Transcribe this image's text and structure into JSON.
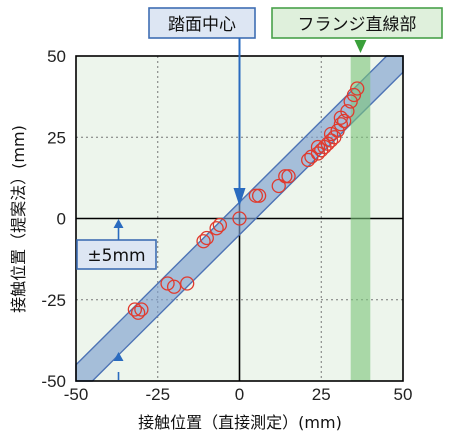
{
  "chart_data": {
    "type": "scatter",
    "xlabel": "接触位置（直接測定）(mm)",
    "ylabel": "接触位置（提案法）(mm)",
    "xlim": [
      -50,
      50
    ],
    "ylim": [
      -50,
      50
    ],
    "x_ticks": [
      "-50",
      "-25",
      "0",
      "25",
      "50"
    ],
    "y_ticks": [
      "50",
      "25",
      "0",
      "-25",
      "-50"
    ],
    "x_tick_values": [
      -50,
      -25,
      0,
      25,
      50
    ],
    "y_tick_values": [
      50,
      25,
      0,
      -25,
      -50
    ],
    "grid": true,
    "band_halfwidth": 5,
    "flange_region": [
      34,
      40
    ],
    "points": [
      {
        "x": -32,
        "y": -28
      },
      {
        "x": -31,
        "y": -29
      },
      {
        "x": -30,
        "y": -28
      },
      {
        "x": -22,
        "y": -20
      },
      {
        "x": -20,
        "y": -21
      },
      {
        "x": -16,
        "y": -20
      },
      {
        "x": -11,
        "y": -7
      },
      {
        "x": -10,
        "y": -6
      },
      {
        "x": -7,
        "y": -3
      },
      {
        "x": -6,
        "y": -2
      },
      {
        "x": 0,
        "y": 0
      },
      {
        "x": 5,
        "y": 7
      },
      {
        "x": 6,
        "y": 7
      },
      {
        "x": 12,
        "y": 10
      },
      {
        "x": 14,
        "y": 13
      },
      {
        "x": 15,
        "y": 13
      },
      {
        "x": 21,
        "y": 18
      },
      {
        "x": 22,
        "y": 19
      },
      {
        "x": 24,
        "y": 20
      },
      {
        "x": 24,
        "y": 22
      },
      {
        "x": 25,
        "y": 21
      },
      {
        "x": 26,
        "y": 22
      },
      {
        "x": 27,
        "y": 23
      },
      {
        "x": 28,
        "y": 24
      },
      {
        "x": 28,
        "y": 26
      },
      {
        "x": 29,
        "y": 25
      },
      {
        "x": 30,
        "y": 27
      },
      {
        "x": 31,
        "y": 29
      },
      {
        "x": 31,
        "y": 31
      },
      {
        "x": 32,
        "y": 30
      },
      {
        "x": 33,
        "y": 33
      },
      {
        "x": 34,
        "y": 36
      },
      {
        "x": 35,
        "y": 38
      },
      {
        "x": 36,
        "y": 40
      }
    ]
  },
  "annotations": {
    "tread_center": "踏面中心",
    "flange_straight": "フランジ直線部",
    "tolerance": "±5mm",
    "tread_center_x": 0,
    "tolerance_x": -37
  },
  "colors": {
    "band_fill": "#7e9fcf",
    "band_stroke": "#4d73b5",
    "flange_fill": "#7cc57a",
    "marker": "#e03a2e",
    "callout_blue_fill": "#dde6f3",
    "callout_blue_stroke": "#3f6eb3",
    "callout_green_fill": "#dff0dc",
    "callout_green_stroke": "#49a14a",
    "arrow_blue": "#2a6bbf",
    "arrow_green": "#3aa03a"
  }
}
